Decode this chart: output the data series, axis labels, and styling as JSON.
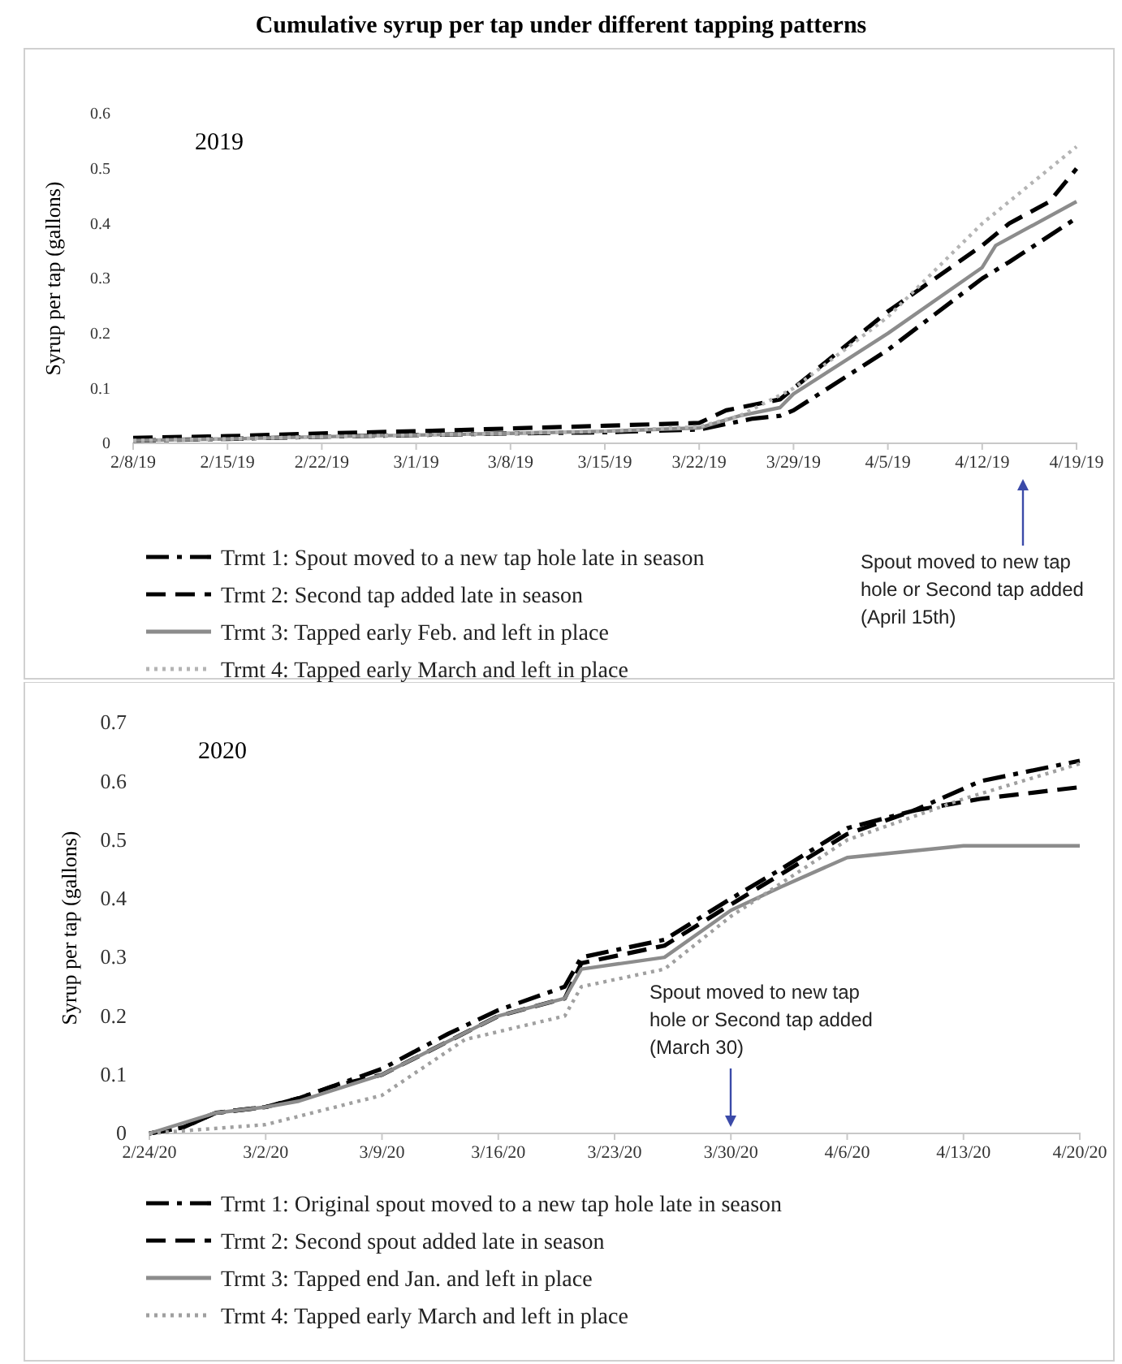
{
  "chart_data": [
    {
      "type": "line",
      "title": "Cumulative syrup per tap under different tapping patterns",
      "subtitle": "2019",
      "ylabel": "Syrup per tap (gallons)",
      "xlim": [
        "2019-02-08",
        "2019-04-19"
      ],
      "xticks": [
        {
          "value": "2019-02-08",
          "label": "2/8/19"
        },
        {
          "value": "2019-02-15",
          "label": "2/15/19"
        },
        {
          "value": "2019-02-22",
          "label": "2/22/19"
        },
        {
          "value": "2019-03-01",
          "label": "3/1/19"
        },
        {
          "value": "2019-03-08",
          "label": "3/8/19"
        },
        {
          "value": "2019-03-15",
          "label": "3/15/19"
        },
        {
          "value": "2019-03-22",
          "label": "3/22/19"
        },
        {
          "value": "2019-03-29",
          "label": "3/29/19"
        },
        {
          "value": "2019-04-05",
          "label": "4/5/19"
        },
        {
          "value": "2019-04-12",
          "label": "4/12/19"
        },
        {
          "value": "2019-04-19",
          "label": "4/19/19"
        }
      ],
      "ylim": [
        0,
        0.6
      ],
      "yticks": [
        0,
        0.1,
        0.2,
        0.3,
        0.4,
        0.5,
        0.6
      ],
      "grid": false,
      "legend": "bottom",
      "marker": "none",
      "series": [
        {
          "name": "Trmt 1: Spout moved to a new tap hole late in season",
          "color": "#000000",
          "line_style": "dashdot",
          "x": [
            "2019-02-08",
            "2019-02-15",
            "2019-02-22",
            "2019-03-01",
            "2019-03-08",
            "2019-03-15",
            "2019-03-22",
            "2019-03-26",
            "2019-03-28",
            "2019-03-29",
            "2019-04-05",
            "2019-04-12",
            "2019-04-14",
            "2019-04-19"
          ],
          "values": [
            0.005,
            0.008,
            0.012,
            0.015,
            0.018,
            0.02,
            0.025,
            0.045,
            0.05,
            0.06,
            0.17,
            0.3,
            0.33,
            0.41
          ]
        },
        {
          "name": "Trmt 2: Second tap added late in season",
          "color": "#000000",
          "line_style": "dashed",
          "x": [
            "2019-02-08",
            "2019-02-15",
            "2019-02-22",
            "2019-03-01",
            "2019-03-08",
            "2019-03-15",
            "2019-03-22",
            "2019-03-24",
            "2019-03-28",
            "2019-03-29",
            "2019-04-05",
            "2019-04-12",
            "2019-04-14",
            "2019-04-17",
            "2019-04-19"
          ],
          "values": [
            0.01,
            0.013,
            0.018,
            0.022,
            0.027,
            0.032,
            0.037,
            0.06,
            0.08,
            0.1,
            0.24,
            0.36,
            0.4,
            0.44,
            0.5
          ]
        },
        {
          "name": "Trmt 3: Tapped early Feb. and left in place",
          "color": "#8c8c8c",
          "line_style": "solid",
          "x": [
            "2019-02-08",
            "2019-02-15",
            "2019-02-22",
            "2019-03-01",
            "2019-03-08",
            "2019-03-15",
            "2019-03-22",
            "2019-03-25",
            "2019-03-28",
            "2019-03-29",
            "2019-04-05",
            "2019-04-12",
            "2019-04-13",
            "2019-04-19"
          ],
          "values": [
            0.005,
            0.008,
            0.012,
            0.015,
            0.018,
            0.022,
            0.028,
            0.05,
            0.065,
            0.09,
            0.2,
            0.32,
            0.36,
            0.44
          ]
        },
        {
          "name": "Trmt 4: Tapped early March and left in place",
          "color": "#b4b4b4",
          "line_style": "dotted",
          "x": [
            "2019-02-08",
            "2019-02-15",
            "2019-02-22",
            "2019-03-01",
            "2019-03-08",
            "2019-03-15",
            "2019-03-22",
            "2019-03-25",
            "2019-03-29",
            "2019-04-05",
            "2019-04-12",
            "2019-04-13",
            "2019-04-19"
          ],
          "values": [
            0.005,
            0.008,
            0.012,
            0.015,
            0.018,
            0.022,
            0.03,
            0.05,
            0.1,
            0.23,
            0.4,
            0.42,
            0.54
          ]
        }
      ],
      "annotations": [
        "Spout moved to new tap hole or Second tap added (April 15th)"
      ]
    },
    {
      "type": "line",
      "subtitle": "2020",
      "ylabel": "Syrup per tap (gallons)",
      "xlim": [
        "2020-02-24",
        "2020-04-20"
      ],
      "xticks": [
        {
          "value": "2020-02-24",
          "label": "2/24/20"
        },
        {
          "value": "2020-03-02",
          "label": "3/2/20"
        },
        {
          "value": "2020-03-09",
          "label": "3/9/20"
        },
        {
          "value": "2020-03-16",
          "label": "3/16/20"
        },
        {
          "value": "2020-03-23",
          "label": "3/23/20"
        },
        {
          "value": "2020-03-30",
          "label": "3/30/20"
        },
        {
          "value": "2020-04-06",
          "label": "4/6/20"
        },
        {
          "value": "2020-04-13",
          "label": "4/13/20"
        },
        {
          "value": "2020-04-20",
          "label": "4/20/20"
        }
      ],
      "ylim": [
        0,
        0.7
      ],
      "yticks": [
        0,
        0.1,
        0.2,
        0.3,
        0.4,
        0.5,
        0.6,
        0.7
      ],
      "grid": false,
      "legend": "bottom",
      "marker": "none",
      "series": [
        {
          "name": "Trmt 1: Original spout moved to a new tap hole late in season",
          "color": "#000000",
          "line_style": "dashdot",
          "x": [
            "2020-02-24",
            "2020-02-26",
            "2020-02-28",
            "2020-03-02",
            "2020-03-04",
            "2020-03-06",
            "2020-03-09",
            "2020-03-13",
            "2020-03-16",
            "2020-03-20",
            "2020-03-21",
            "2020-03-26",
            "2020-03-30",
            "2020-04-02",
            "2020-04-06",
            "2020-04-10",
            "2020-04-14",
            "2020-04-20"
          ],
          "values": [
            0,
            0.01,
            0.035,
            0.045,
            0.06,
            0.08,
            0.11,
            0.17,
            0.21,
            0.25,
            0.3,
            0.33,
            0.4,
            0.45,
            0.52,
            0.55,
            0.6,
            0.635
          ]
        },
        {
          "name": "Trmt 2: Second spout added late in season",
          "color": "#000000",
          "line_style": "dashed",
          "x": [
            "2020-02-24",
            "2020-02-26",
            "2020-02-28",
            "2020-03-02",
            "2020-03-04",
            "2020-03-06",
            "2020-03-09",
            "2020-03-16",
            "2020-03-20",
            "2020-03-21",
            "2020-03-26",
            "2020-03-30",
            "2020-04-06",
            "2020-04-10",
            "2020-04-14",
            "2020-04-20"
          ],
          "values": [
            0,
            0.01,
            0.035,
            0.045,
            0.06,
            0.08,
            0.1,
            0.2,
            0.23,
            0.29,
            0.32,
            0.39,
            0.51,
            0.55,
            0.57,
            0.59
          ]
        },
        {
          "name": "Trmt 3: Tapped end Jan. and left in place",
          "color": "#8c8c8c",
          "line_style": "solid",
          "x": [
            "2020-02-24",
            "2020-02-28",
            "2020-03-02",
            "2020-03-04",
            "2020-03-09",
            "2020-03-16",
            "2020-03-20",
            "2020-03-21",
            "2020-03-26",
            "2020-03-30",
            "2020-04-02",
            "2020-04-06",
            "2020-04-13",
            "2020-04-20"
          ],
          "values": [
            0,
            0.035,
            0.045,
            0.055,
            0.1,
            0.2,
            0.23,
            0.28,
            0.3,
            0.38,
            0.42,
            0.47,
            0.49,
            0.49
          ]
        },
        {
          "name": "Trmt 4: Tapped early March and left in place",
          "color": "#a0a0a0",
          "line_style": "dotted",
          "x": [
            "2020-02-24",
            "2020-03-02",
            "2020-03-09",
            "2020-03-14",
            "2020-03-20",
            "2020-03-21",
            "2020-03-26",
            "2020-03-30",
            "2020-04-06",
            "2020-04-13",
            "2020-04-20"
          ],
          "values": [
            0,
            0.015,
            0.065,
            0.16,
            0.2,
            0.25,
            0.28,
            0.37,
            0.5,
            0.57,
            0.63
          ]
        }
      ],
      "annotations": [
        "Spout moved to new tap hole or Second tap added (March 30)"
      ]
    }
  ]
}
